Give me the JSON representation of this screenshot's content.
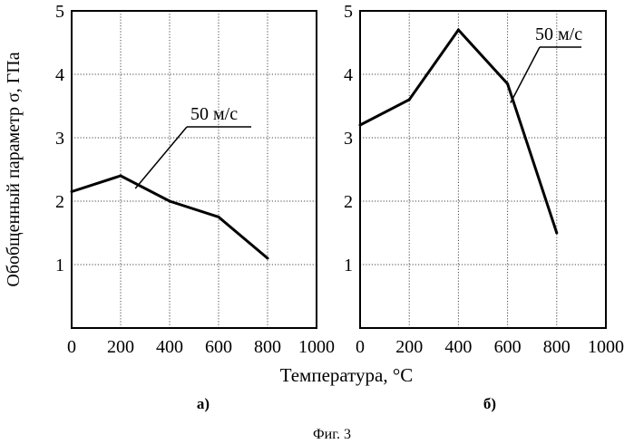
{
  "figure": {
    "caption": "Фиг. 3",
    "xlabel": "Температура, °C",
    "ylabel": "Обобщенный параметр σ, ГПа"
  },
  "chart_data": [
    {
      "type": "line",
      "panel_label": "а)",
      "xlim": [
        0,
        1000
      ],
      "ylim": [
        0,
        5
      ],
      "xticks": [
        0,
        200,
        400,
        600,
        800,
        1000
      ],
      "yticks": [
        1,
        2,
        3,
        4,
        5
      ],
      "grid": true,
      "series": [
        {
          "name": "50 м/с",
          "x": [
            0,
            200,
            400,
            600,
            800
          ],
          "y": [
            2.15,
            2.4,
            2.0,
            1.75,
            1.1
          ]
        }
      ],
      "annotation": {
        "text": "50 м/с",
        "points_to": [
          260,
          2.2
        ]
      }
    },
    {
      "type": "line",
      "panel_label": "б)",
      "xlim": [
        0,
        1000
      ],
      "ylim": [
        0,
        5
      ],
      "xticks": [
        0,
        200,
        400,
        600,
        800,
        1000
      ],
      "yticks": [
        1,
        2,
        3,
        4,
        5
      ],
      "grid": true,
      "series": [
        {
          "name": "50 м/с",
          "x": [
            0,
            200,
            400,
            600,
            800
          ],
          "y": [
            3.2,
            3.6,
            4.7,
            3.85,
            1.5
          ]
        }
      ],
      "annotation": {
        "text": "50 м/с",
        "points_to": [
          612,
          3.55
        ]
      }
    }
  ]
}
